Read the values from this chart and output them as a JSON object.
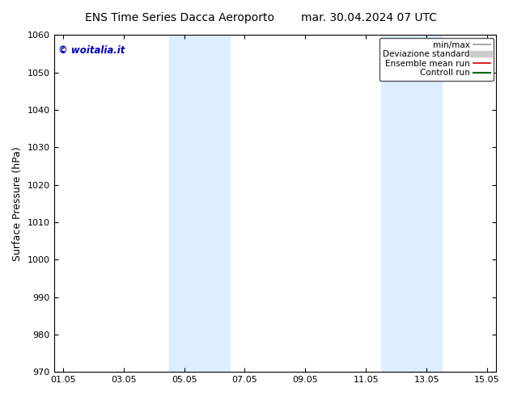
{
  "title_left": "ENS Time Series Dacca Aeroporto",
  "title_right": "mar. 30.04.2024 07 UTC",
  "ylabel": "Surface Pressure (hPa)",
  "ylim": [
    970,
    1060
  ],
  "yticks": [
    970,
    980,
    990,
    1000,
    1010,
    1020,
    1030,
    1040,
    1050,
    1060
  ],
  "xtick_labels": [
    "01.05",
    "03.05",
    "05.05",
    "07.05",
    "09.05",
    "11.05",
    "13.05",
    "15.05"
  ],
  "xtick_positions": [
    0,
    2,
    4,
    6,
    8,
    10,
    12,
    14
  ],
  "xlim": [
    -0.3,
    14.3
  ],
  "shaded_bands": [
    {
      "xmin": 3.5,
      "xmax": 5.5,
      "color": "#dceeff"
    },
    {
      "xmin": 10.5,
      "xmax": 12.5,
      "color": "#dceeff"
    }
  ],
  "watermark": "© woitalia.it",
  "watermark_color": "#0000bb",
  "legend_entries": [
    {
      "label": "min/max",
      "color": "#999999",
      "lw": 1.2,
      "type": "line"
    },
    {
      "label": "Deviazione standard",
      "color": "#cccccc",
      "lw": 6,
      "type": "band"
    },
    {
      "label": "Ensemble mean run",
      "color": "#cc0000",
      "lw": 1.2,
      "type": "line"
    },
    {
      "label": "Controll run",
      "color": "#006600",
      "lw": 1.5,
      "type": "line"
    }
  ],
  "bg_color": "#ffffff",
  "title_fontsize": 10,
  "tick_fontsize": 8,
  "ylabel_fontsize": 9,
  "legend_fontsize": 7.5
}
